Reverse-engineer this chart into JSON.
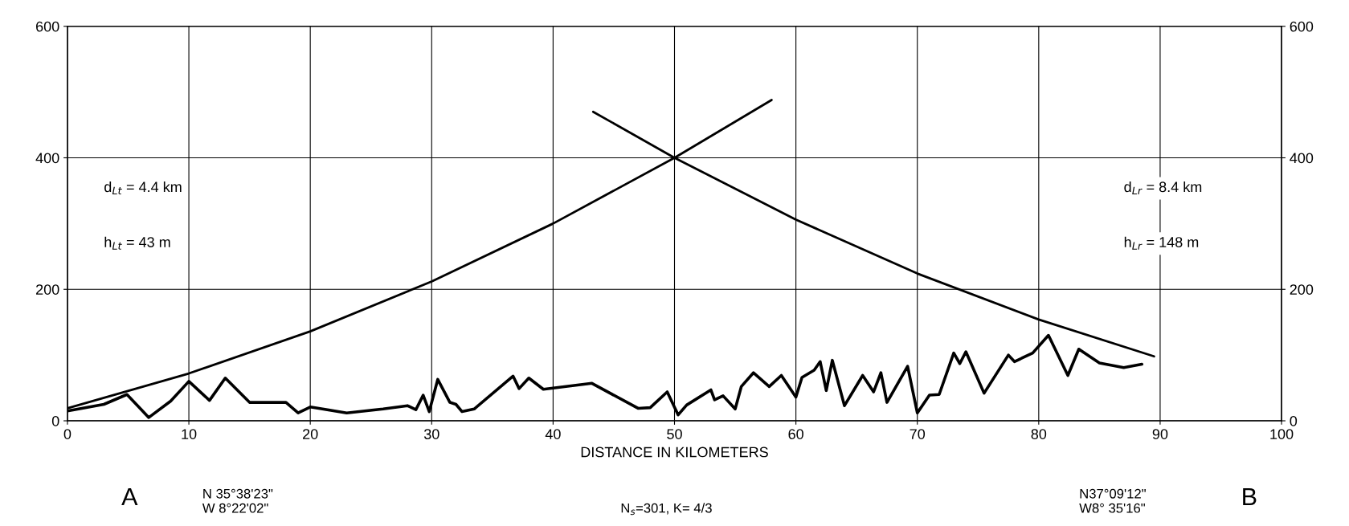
{
  "chart_data": {
    "type": "line",
    "xlabel": "DISTANCE IN KILOMETERS",
    "xlim": [
      0,
      100
    ],
    "xticks": [
      0,
      10,
      20,
      30,
      40,
      50,
      60,
      70,
      80,
      90,
      100
    ],
    "ylim": [
      0,
      600
    ],
    "yticks": [
      0,
      200,
      400,
      600
    ],
    "y2lim": [
      0,
      600
    ],
    "y2ticks": [
      0,
      200,
      400,
      600
    ],
    "grid": true,
    "line_style": "solid",
    "series": [
      {
        "color": "#000000",
        "x": [
          0,
          3,
          4.9,
          6.7,
          8.5,
          10,
          11.7,
          13,
          15,
          18,
          19,
          20,
          23,
          26,
          28,
          28.7,
          29.3,
          29.8,
          30.5,
          31.5,
          32,
          32.5,
          33.5,
          36.7,
          37.2,
          38,
          39.2,
          43.2,
          47,
          48,
          49.4,
          50.3,
          51,
          53,
          53.3,
          54,
          55,
          55.5,
          56.5,
          57.8,
          58.8,
          60,
          60.5,
          61.5,
          62,
          62.5,
          63,
          64,
          65.5,
          66.4,
          67,
          67.5,
          69.2,
          70,
          71,
          71.8,
          73,
          73.5,
          74,
          75.5,
          77.5,
          78,
          79.5,
          80.8,
          82.4,
          83.3,
          85,
          87,
          88.5
        ],
        "values": [
          15,
          25,
          40,
          5,
          30,
          60,
          31,
          65,
          28,
          28,
          12,
          21,
          12,
          18,
          23,
          17,
          39,
          14,
          63,
          28,
          25,
          14,
          18,
          68,
          49,
          65,
          48,
          57,
          19,
          20,
          44,
          9,
          24,
          47,
          32,
          38,
          18,
          52,
          73,
          52,
          69,
          36,
          66,
          77,
          90,
          46,
          92,
          23,
          69,
          44,
          73,
          28,
          83,
          12,
          39,
          40,
          103,
          87,
          105,
          42,
          100,
          90,
          103,
          130,
          69,
          109,
          88,
          81,
          86
        ]
      },
      {
        "color": "#000000",
        "x": [
          0,
          10,
          20,
          30,
          40,
          50,
          58
        ],
        "values": [
          19,
          72,
          136,
          212,
          300,
          400,
          488
        ]
      },
      {
        "color": "#000000",
        "x": [
          43.3,
          50,
          60,
          70,
          80,
          89.5
        ],
        "values": [
          470,
          400,
          306,
          224,
          154,
          98
        ]
      }
    ],
    "annotations": [
      "d$_{Lt}$ = 4.4 km",
      "h$_{Lt}$ = 43 m",
      "d$_{Lr}$ = 8.4 km",
      "h$_{Lr}$ = 148 m",
      "A",
      "N 35°38'23\"\nW 8°22'02\"",
      "N$_{s}$=301, K= 4/3",
      "B",
      "N37°09'12\"\nW8° 35'16\""
    ]
  }
}
